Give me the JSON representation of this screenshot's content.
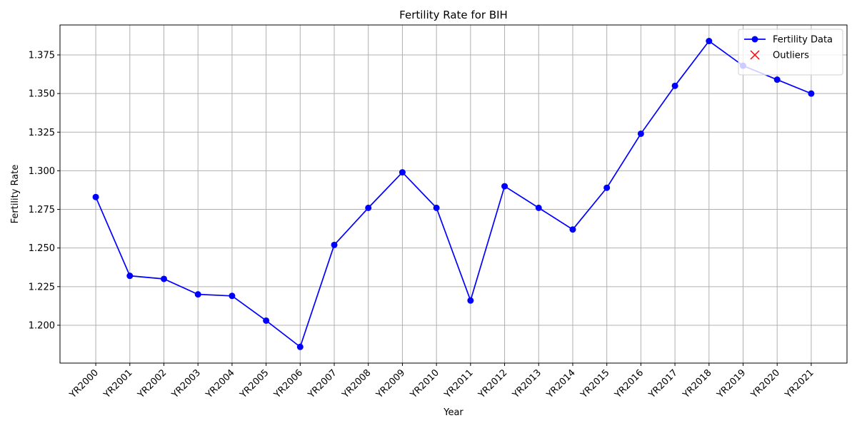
{
  "chart_data": {
    "type": "line",
    "title": "Fertility Rate for BIH",
    "xlabel": "Year",
    "ylabel": "Fertility Rate",
    "categories": [
      "YR2000",
      "YR2001",
      "YR2002",
      "YR2003",
      "YR2004",
      "YR2005",
      "YR2006",
      "YR2007",
      "YR2008",
      "YR2009",
      "YR2010",
      "YR2011",
      "YR2012",
      "YR2013",
      "YR2014",
      "YR2015",
      "YR2016",
      "YR2017",
      "YR2018",
      "YR2019",
      "YR2020",
      "YR2021"
    ],
    "series": [
      {
        "name": "Fertility Data",
        "color": "#0000ff",
        "marker": "o",
        "values": [
          1.283,
          1.232,
          1.23,
          1.22,
          1.219,
          1.203,
          1.186,
          1.252,
          1.276,
          1.299,
          1.276,
          1.216,
          1.29,
          1.276,
          1.262,
          1.289,
          1.324,
          1.355,
          1.384,
          1.368,
          1.359,
          1.35
        ]
      },
      {
        "name": "Outliers",
        "color": "#ff0000",
        "marker": "x",
        "values": [
          null,
          null,
          null,
          null,
          null,
          null,
          null,
          null,
          null,
          null,
          null,
          null,
          null,
          null,
          null,
          null,
          null,
          null,
          null,
          null,
          null,
          null
        ]
      }
    ],
    "ylim": [
      1.1755,
      1.3944
    ],
    "yticks": [
      {
        "value": 1.2,
        "label": "1.200"
      },
      {
        "value": 1.225,
        "label": "1.225"
      },
      {
        "value": 1.25,
        "label": "1.250"
      },
      {
        "value": 1.275,
        "label": "1.275"
      },
      {
        "value": 1.3,
        "label": "1.300"
      },
      {
        "value": 1.325,
        "label": "1.325"
      },
      {
        "value": 1.35,
        "label": "1.350"
      },
      {
        "value": 1.375,
        "label": "1.375"
      }
    ],
    "grid": true,
    "legend": "upper right"
  }
}
